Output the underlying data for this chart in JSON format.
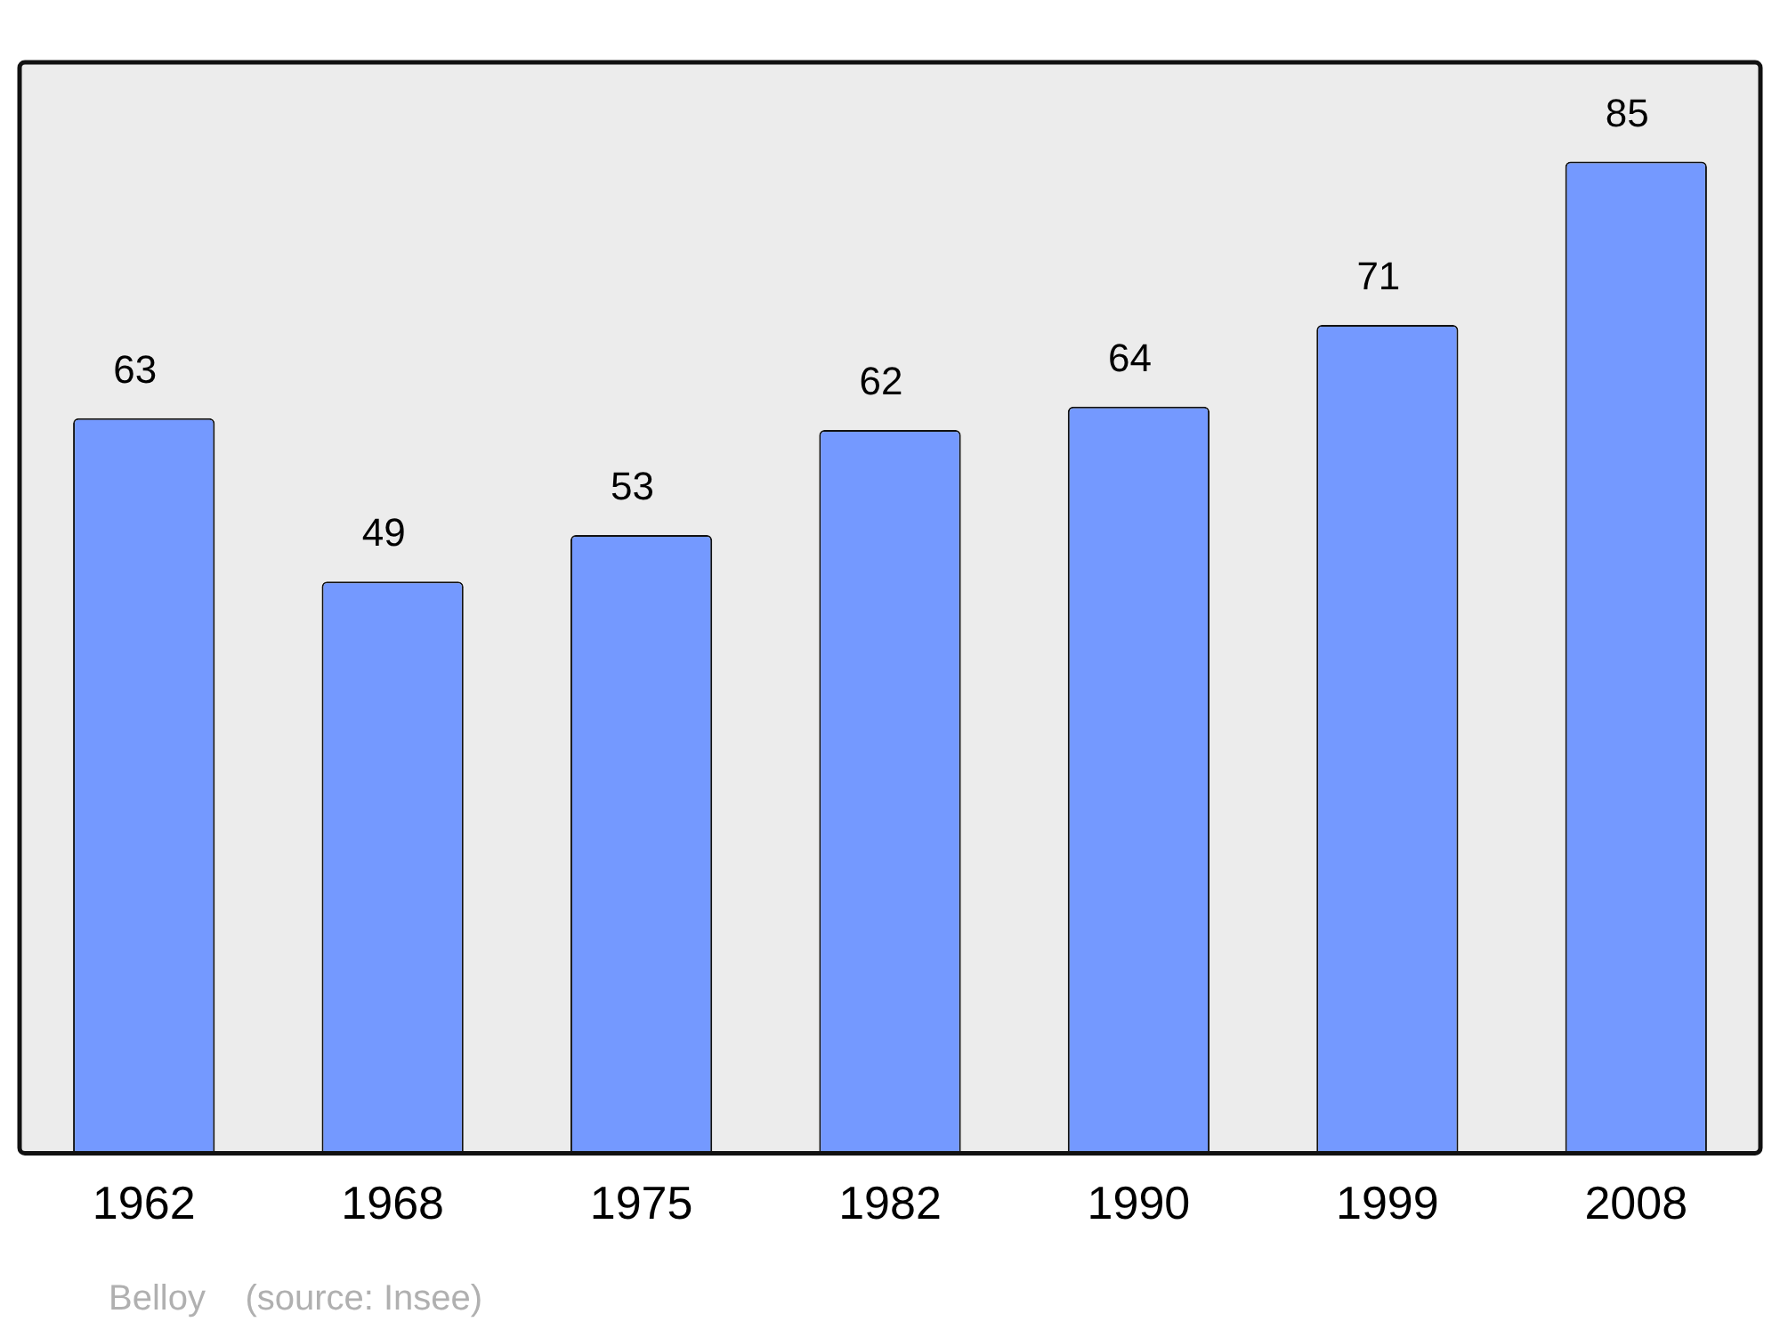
{
  "chart_data": {
    "type": "bar",
    "categories": [
      "1962",
      "1968",
      "1975",
      "1982",
      "1990",
      "1999",
      "2008"
    ],
    "values": [
      63,
      49,
      53,
      62,
      64,
      71,
      85
    ],
    "color": "#7499ff",
    "ylim": [
      0,
      93.5
    ],
    "data_labels": true,
    "tick_labels": "x",
    "grid": false,
    "legend": false,
    "annotations": [
      "Belloy    (source: Insee)"
    ]
  }
}
